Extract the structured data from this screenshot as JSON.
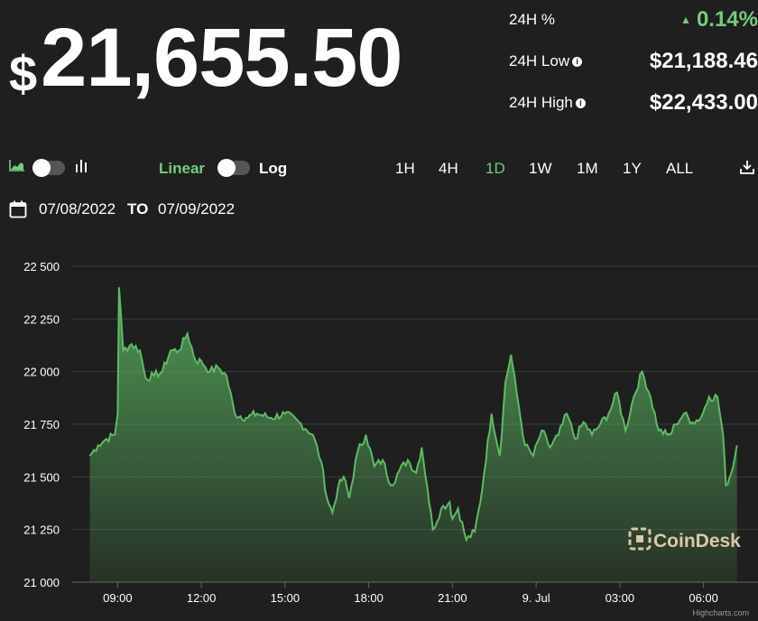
{
  "price": {
    "currency": "$",
    "value": "21,655.50"
  },
  "stats": [
    {
      "label": "24H %",
      "value": "0.14%",
      "trend": "up",
      "info": false
    },
    {
      "label": "24H Low",
      "value": "$21,188.46",
      "info": true
    },
    {
      "label": "24H High",
      "value": "$22,433.00",
      "info": true
    }
  ],
  "controls": {
    "scale_linear": "Linear",
    "scale_log": "Log",
    "ranges": [
      "1H",
      "4H",
      "1D",
      "1W",
      "1M",
      "1Y",
      "ALL"
    ],
    "active_range": "1D"
  },
  "date_range": {
    "from": "07/08/2022",
    "to_label": "TO",
    "to": "07/09/2022"
  },
  "colors": {
    "accent": "#6fcf7a",
    "line": "#5dbb63",
    "background": "#1f1f1f"
  },
  "chart_data": {
    "type": "area",
    "x_labels": [
      "09:00",
      "12:00",
      "15:00",
      "18:00",
      "21:00",
      "9. Jul",
      "03:00",
      "06:00"
    ],
    "x_label_hours": [
      9,
      12,
      15,
      18,
      21,
      24,
      27,
      30
    ],
    "xlim_hours": [
      7.5,
      31.5
    ],
    "ylim": [
      21000,
      22500
    ],
    "y_ticks": [
      21000,
      21250,
      21500,
      21750,
      22000,
      22250,
      22500
    ],
    "y_tick_labels": [
      "21 000",
      "21 250",
      "21 500",
      "21 750",
      "22 000",
      "22 250",
      "22 500"
    ],
    "grid": true,
    "watermark": "CoinDesk",
    "credits": "Highcharts.com",
    "series": [
      {
        "x_hours": [
          8.0,
          8.3,
          8.6,
          8.9,
          9.0,
          9.05,
          9.2,
          9.5,
          9.8,
          10.0,
          10.3,
          10.6,
          10.9,
          11.2,
          11.5,
          11.8,
          12.0,
          12.3,
          12.6,
          12.9,
          13.2,
          13.6,
          14.0,
          14.5,
          15.0,
          15.5,
          16.0,
          16.3,
          16.5,
          16.7,
          16.9,
          17.1,
          17.3,
          17.6,
          17.9,
          18.2,
          18.5,
          18.8,
          19.1,
          19.4,
          19.7,
          19.9,
          20.1,
          20.3,
          20.6,
          20.9,
          21.0,
          21.2,
          21.5,
          21.8,
          22.0,
          22.4,
          22.7,
          22.9,
          23.1,
          23.3,
          23.6,
          23.9,
          24.2,
          24.5,
          24.8,
          25.1,
          25.4,
          25.7,
          26.0,
          26.3,
          26.6,
          26.9,
          27.2,
          27.5,
          27.8,
          28.1,
          28.4,
          28.7,
          28.8,
          29.0,
          29.3,
          29.6,
          29.9,
          30.2,
          30.5,
          30.7,
          30.8,
          31.0,
          31.2
        ],
        "y": [
          21600,
          21650,
          21680,
          21700,
          21800,
          22400,
          22100,
          22130,
          22100,
          21970,
          21980,
          22000,
          22100,
          22100,
          22180,
          22050,
          22050,
          22000,
          22020,
          21980,
          21800,
          21780,
          21800,
          21780,
          21800,
          21760,
          21700,
          21570,
          21400,
          21330,
          21450,
          21500,
          21400,
          21620,
          21700,
          21550,
          21580,
          21460,
          21530,
          21580,
          21520,
          21640,
          21450,
          21250,
          21350,
          21380,
          21300,
          21350,
          21200,
          21240,
          21380,
          21800,
          21600,
          21950,
          22080,
          21900,
          21650,
          21600,
          21720,
          21640,
          21700,
          21800,
          21680,
          21760,
          21700,
          21750,
          21800,
          21900,
          21720,
          21880,
          22000,
          21880,
          21720,
          21700,
          21700,
          21750,
          21800,
          21760,
          21780,
          21880,
          21880,
          21700,
          21460,
          21520,
          21650
        ]
      }
    ]
  }
}
